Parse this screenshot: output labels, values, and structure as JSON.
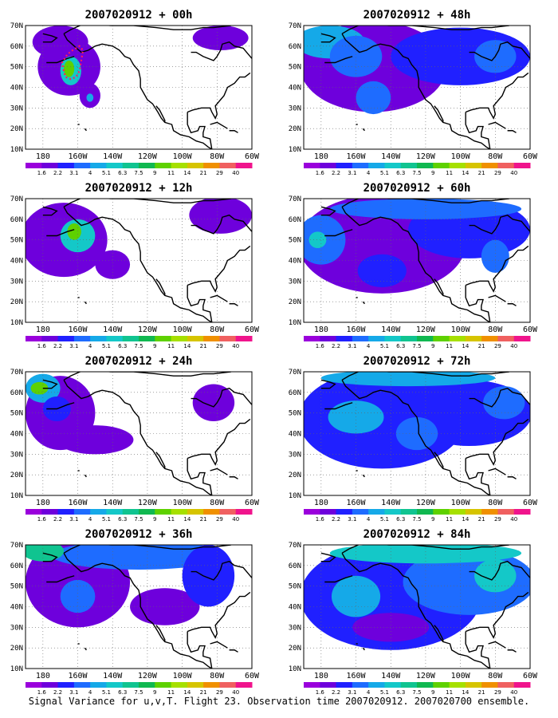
{
  "footer": {
    "caption": "Signal Variance for u,v,T. Flight 23. Observation time 2007020912. 2007020700 ensemble."
  },
  "map": {
    "lat_labels": [
      "70N",
      "60N",
      "50N",
      "40N",
      "30N",
      "20N",
      "10N"
    ],
    "lon_labels": [
      "180",
      "160W",
      "140W",
      "120W",
      "100W",
      "80W",
      "60W"
    ],
    "lon_range": [
      -190,
      -60
    ],
    "lat_range": [
      10,
      70
    ]
  },
  "colorbar": {
    "labels": [
      "1.6",
      "2.2",
      "3.1",
      "4",
      "5.1",
      "6.3",
      "7.5",
      "9",
      "11",
      "14",
      "21",
      "29",
      "40"
    ],
    "colors": [
      "#9a00dc",
      "#6e00dc",
      "#2020ff",
      "#1e6cff",
      "#15a9e8",
      "#14c8c8",
      "#10c490",
      "#10b850",
      "#5ed100",
      "#a6e000",
      "#d6c400",
      "#f09000",
      "#f06060",
      "#f0148c"
    ]
  },
  "panels": [
    {
      "title": "2007020912 + 00h",
      "blobs": [
        {
          "lat": 50,
          "lon": -165,
          "rlat": 14,
          "rlon": 18,
          "level": 1
        },
        {
          "lat": 62,
          "lon": -170,
          "rlat": 8,
          "rlon": 16,
          "level": 1
        },
        {
          "lat": 48,
          "lon": -164,
          "rlat": 7,
          "rlon": 6,
          "level": 5
        },
        {
          "lat": 49,
          "lon": -165,
          "rlat": 4,
          "rlon": 3,
          "level": 8
        },
        {
          "lat": 36,
          "lon": -153,
          "rlat": 6,
          "rlon": 6,
          "level": 1
        },
        {
          "lat": 35,
          "lon": -153,
          "rlat": 2,
          "rlon": 2,
          "level": 4
        },
        {
          "lat": 64,
          "lon": -78,
          "rlat": 6,
          "rlon": 16,
          "level": 1
        }
      ],
      "flight_track": [
        [
          -168,
          48
        ],
        [
          -169,
          52
        ],
        [
          -166,
          56
        ],
        [
          -163,
          58
        ],
        [
          -159,
          60
        ],
        [
          -157,
          58
        ],
        [
          -158,
          53
        ],
        [
          -159,
          48
        ],
        [
          -161,
          45
        ],
        [
          -164,
          44
        ],
        [
          -167,
          45
        ],
        [
          -168,
          48
        ]
      ]
    },
    {
      "title": "2007020912 + 12h",
      "blobs": [
        {
          "lat": 50,
          "lon": -168,
          "rlat": 18,
          "rlon": 25,
          "level": 1
        },
        {
          "lat": 38,
          "lon": -140,
          "rlat": 7,
          "rlon": 10,
          "level": 1
        },
        {
          "lat": 52,
          "lon": -160,
          "rlat": 8,
          "rlon": 10,
          "level": 5
        },
        {
          "lat": 54,
          "lon": -162,
          "rlat": 4,
          "rlon": 4,
          "level": 8
        },
        {
          "lat": 62,
          "lon": -78,
          "rlat": 9,
          "rlon": 18,
          "level": 1
        }
      ]
    },
    {
      "title": "2007020912 + 24h",
      "blobs": [
        {
          "lat": 50,
          "lon": -170,
          "rlat": 18,
          "rlon": 20,
          "level": 1
        },
        {
          "lat": 37,
          "lon": -150,
          "rlat": 7,
          "rlon": 22,
          "level": 1
        },
        {
          "lat": 62,
          "lon": -180,
          "rlat": 7,
          "rlon": 10,
          "level": 4
        },
        {
          "lat": 62,
          "lon": -182,
          "rlat": 3,
          "rlon": 5,
          "level": 8
        },
        {
          "lat": 52,
          "lon": -172,
          "rlat": 6,
          "rlon": 8,
          "level": 2
        },
        {
          "lat": 55,
          "lon": -82,
          "rlat": 9,
          "rlon": 12,
          "level": 1
        }
      ]
    },
    {
      "title": "2007020912 + 36h",
      "blobs": [
        {
          "lat": 52,
          "lon": -160,
          "rlat": 22,
          "rlon": 30,
          "level": 1
        },
        {
          "lat": 65,
          "lon": -125,
          "rlat": 7,
          "rlon": 50,
          "level": 3
        },
        {
          "lat": 67,
          "lon": -180,
          "rlat": 5,
          "rlon": 12,
          "level": 6
        },
        {
          "lat": 40,
          "lon": -110,
          "rlat": 9,
          "rlon": 20,
          "level": 1
        },
        {
          "lat": 55,
          "lon": -85,
          "rlat": 15,
          "rlon": 15,
          "level": 2
        },
        {
          "lat": 45,
          "lon": -160,
          "rlat": 8,
          "rlon": 10,
          "level": 3
        }
      ]
    },
    {
      "title": "2007020912 + 48h",
      "blobs": [
        {
          "lat": 50,
          "lon": -150,
          "rlat": 22,
          "rlon": 42,
          "level": 1
        },
        {
          "lat": 55,
          "lon": -100,
          "rlat": 14,
          "rlon": 40,
          "level": 2
        },
        {
          "lat": 62,
          "lon": -175,
          "rlat": 8,
          "rlon": 20,
          "level": 4
        },
        {
          "lat": 55,
          "lon": -160,
          "rlat": 10,
          "rlon": 15,
          "level": 3
        },
        {
          "lat": 35,
          "lon": -150,
          "rlat": 8,
          "rlon": 10,
          "level": 3
        },
        {
          "lat": 55,
          "lon": -80,
          "rlat": 8,
          "rlon": 12,
          "level": 3
        }
      ]
    },
    {
      "title": "2007020912 + 60h",
      "blobs": [
        {
          "lat": 48,
          "lon": -145,
          "rlat": 24,
          "rlon": 48,
          "level": 1
        },
        {
          "lat": 55,
          "lon": -95,
          "rlat": 14,
          "rlon": 35,
          "level": 2
        },
        {
          "lat": 50,
          "lon": -180,
          "rlat": 12,
          "rlon": 14,
          "level": 3
        },
        {
          "lat": 50,
          "lon": -182,
          "rlat": 4,
          "rlon": 5,
          "level": 5
        },
        {
          "lat": 65,
          "lon": -120,
          "rlat": 5,
          "rlon": 55,
          "level": 3
        },
        {
          "lat": 35,
          "lon": -145,
          "rlat": 8,
          "rlon": 14,
          "level": 2
        },
        {
          "lat": 42,
          "lon": -80,
          "rlat": 8,
          "rlon": 8,
          "level": 3
        }
      ]
    },
    {
      "title": "2007020912 + 72h",
      "blobs": [
        {
          "lat": 47,
          "lon": -145,
          "rlat": 24,
          "rlon": 48,
          "level": 2
        },
        {
          "lat": 50,
          "lon": -95,
          "rlat": 16,
          "rlon": 36,
          "level": 2
        },
        {
          "lat": 48,
          "lon": -160,
          "rlat": 8,
          "rlon": 16,
          "level": 4
        },
        {
          "lat": 67,
          "lon": -130,
          "rlat": 4,
          "rlon": 50,
          "level": 4
        },
        {
          "lat": 40,
          "lon": -125,
          "rlat": 8,
          "rlon": 12,
          "level": 3
        },
        {
          "lat": 55,
          "lon": -75,
          "rlat": 8,
          "rlon": 12,
          "level": 3
        }
      ]
    },
    {
      "title": "2007020912 + 84h",
      "blobs": [
        {
          "lat": 45,
          "lon": -140,
          "rlat": 26,
          "rlon": 52,
          "level": 2
        },
        {
          "lat": 52,
          "lon": -95,
          "rlat": 16,
          "rlon": 38,
          "level": 3
        },
        {
          "lat": 66,
          "lon": -120,
          "rlat": 5,
          "rlon": 55,
          "level": 5
        },
        {
          "lat": 30,
          "lon": -140,
          "rlat": 7,
          "rlon": 22,
          "level": 1
        },
        {
          "lat": 45,
          "lon": -160,
          "rlat": 10,
          "rlon": 14,
          "level": 4
        },
        {
          "lat": 55,
          "lon": -80,
          "rlat": 8,
          "rlon": 12,
          "level": 5
        }
      ]
    }
  ]
}
